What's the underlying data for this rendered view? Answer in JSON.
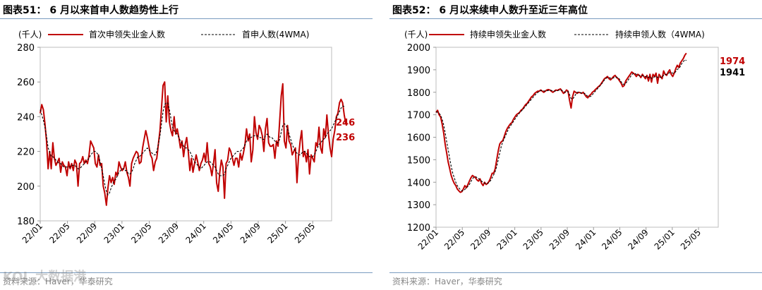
{
  "left": {
    "title": "图表51：  6 月以来首申人数趋势性上行",
    "unit": "(千人)",
    "source": "资料来源：Haver，华泰研究",
    "chart_data": {
      "type": "line",
      "x_tick_labels": [
        "22/01",
        "22/05",
        "22/09",
        "23/01",
        "23/05",
        "23/09",
        "24/01",
        "24/05",
        "24/09",
        "25/01",
        "25/05"
      ],
      "x_start": "2022-01-01",
      "weeks_between_ticks": 17.3,
      "ylim": [
        180,
        280
      ],
      "yticks": [
        180,
        200,
        220,
        240,
        260,
        280
      ],
      "series": [
        {
          "name": "首次申领失业金人数",
          "color": "#c00000",
          "values": [
            242,
            247,
            244,
            236,
            226,
            210,
            220,
            210,
            225,
            216,
            212,
            214,
            216,
            208,
            214,
            212,
            211,
            206,
            214,
            210,
            213,
            209,
            215,
            213,
            200,
            213,
            214,
            217,
            213,
            215,
            213,
            218,
            226,
            224,
            222,
            213,
            211,
            218,
            212,
            213,
            200,
            196,
            189,
            199,
            206,
            202,
            205,
            201,
            208,
            206,
            214,
            211,
            209,
            210,
            214,
            208,
            205,
            200,
            213,
            216,
            218,
            220,
            219,
            213,
            214,
            222,
            227,
            232,
            228,
            223,
            218,
            216,
            209,
            214,
            216,
            224,
            232,
            245,
            258,
            260,
            237,
            252,
            237,
            232,
            229,
            240,
            230,
            233,
            228,
            222,
            226,
            217,
            224,
            228,
            220,
            209,
            216,
            208,
            213,
            218,
            214,
            209,
            213,
            215,
            219,
            214,
            225,
            213,
            211,
            206,
            213,
            221,
            202,
            197,
            208,
            215,
            211,
            193,
            213,
            215,
            222,
            220,
            216,
            212,
            216,
            216,
            211,
            219,
            215,
            219,
            224,
            233,
            226,
            230,
            214,
            221,
            240,
            231,
            227,
            235,
            233,
            229,
            220,
            233,
            239,
            225,
            223,
            223,
            224,
            216,
            226,
            223,
            237,
            252,
            259,
            226,
            222,
            235,
            226,
            224,
            218,
            220,
            222,
            202,
            217,
            226,
            232,
            217,
            220,
            214,
            221,
            207,
            218,
            216,
            214,
            225,
            223,
            234,
            222,
            219,
            233,
            228,
            241,
            230,
            222,
            217,
            227,
            232,
            240,
            242,
            248,
            250,
            248,
            241,
            236
          ]
        },
        {
          "name": "首申人数(4WMA)",
          "color": "#000000",
          "dashed": true,
          "values": [
            244,
            241,
            238,
            234,
            229,
            222,
            220,
            217,
            217,
            216,
            215,
            214,
            213,
            213,
            212,
            211,
            211,
            211,
            211,
            211,
            212,
            212,
            212,
            211,
            210,
            210,
            211,
            212,
            213,
            214,
            215,
            216,
            218,
            219,
            220,
            220,
            219,
            218,
            214,
            210,
            206,
            201,
            197,
            195,
            196,
            199,
            201,
            203,
            204,
            206,
            208,
            209,
            210,
            210,
            209,
            209,
            207,
            207,
            208,
            210,
            213,
            215,
            217,
            217,
            218,
            219,
            220,
            221,
            222,
            221,
            220,
            219,
            218,
            218,
            220,
            224,
            229,
            236,
            243,
            247,
            248,
            248,
            244,
            239,
            234,
            232,
            231,
            230,
            228,
            226,
            225,
            223,
            222,
            222,
            221,
            220,
            218,
            216,
            214,
            213,
            212,
            211,
            210,
            211,
            212,
            213,
            214,
            214,
            214,
            213,
            212,
            211,
            209,
            207,
            206,
            206,
            206,
            207,
            210,
            212,
            214,
            216,
            217,
            218,
            219,
            220,
            220,
            220,
            221,
            222,
            224,
            226,
            227,
            228,
            228,
            229,
            229,
            229,
            229,
            228,
            228,
            227,
            227,
            229,
            230,
            229,
            228,
            228,
            227,
            226,
            225,
            225,
            227,
            231,
            235,
            236,
            235,
            233,
            230,
            227,
            224,
            222,
            220,
            219,
            218,
            218,
            219,
            220,
            220,
            219,
            218,
            217,
            217,
            217,
            218,
            220,
            222,
            224,
            225,
            226,
            227,
            228,
            230,
            231,
            232,
            233,
            235,
            237,
            239,
            241,
            243,
            245,
            246,
            246
          ]
        }
      ],
      "end_labels": [
        {
          "text": "246",
          "color": "#c00000"
        },
        {
          "text": "236",
          "color": "#c00000"
        }
      ]
    }
  },
  "right": {
    "title": "图表52：  6 月以来续申人数升至近三年高位",
    "unit": "(千人)",
    "source": "资料来源：Haver，华泰研究",
    "chart_data": {
      "type": "line",
      "x_tick_labels": [
        "22/01",
        "22/05",
        "22/09",
        "23/01",
        "23/05",
        "23/09",
        "24/01",
        "24/05",
        "24/09",
        "25/01",
        "25/05"
      ],
      "x_start": "2022-01-01",
      "weeks_between_ticks": 17.3,
      "ylim": [
        1200,
        2000
      ],
      "yticks": [
        1200,
        1300,
        1400,
        1500,
        1600,
        1700,
        1800,
        1900,
        2000
      ],
      "series": [
        {
          "name": "持续申领失业金人数",
          "color": "#c00000",
          "values": [
            1710,
            1720,
            1700,
            1690,
            1660,
            1620,
            1570,
            1530,
            1490,
            1460,
            1430,
            1410,
            1395,
            1385,
            1370,
            1362,
            1355,
            1358,
            1370,
            1385,
            1375,
            1390,
            1405,
            1420,
            1430,
            1425,
            1420,
            1410,
            1405,
            1415,
            1395,
            1385,
            1400,
            1390,
            1395,
            1405,
            1420,
            1440,
            1440,
            1460,
            1500,
            1540,
            1570,
            1580,
            1585,
            1605,
            1625,
            1640,
            1650,
            1660,
            1665,
            1680,
            1690,
            1700,
            1705,
            1710,
            1720,
            1725,
            1735,
            1745,
            1750,
            1760,
            1770,
            1780,
            1785,
            1795,
            1800,
            1805,
            1805,
            1810,
            1805,
            1800,
            1805,
            1810,
            1812,
            1810,
            1805,
            1800,
            1805,
            1810,
            1808,
            1812,
            1815,
            1805,
            1795,
            1800,
            1810,
            1805,
            1765,
            1730,
            1780,
            1805,
            1800,
            1795,
            1800,
            1798,
            1795,
            1800,
            1790,
            1780,
            1775,
            1785,
            1790,
            1800,
            1805,
            1812,
            1818,
            1825,
            1830,
            1840,
            1850,
            1860,
            1865,
            1870,
            1860,
            1855,
            1862,
            1870,
            1875,
            1865,
            1860,
            1850,
            1840,
            1825,
            1830,
            1850,
            1860,
            1870,
            1880,
            1890,
            1885,
            1880,
            1870,
            1880,
            1875,
            1865,
            1880,
            1870,
            1860,
            1875,
            1850,
            1880,
            1845,
            1880,
            1870,
            1885,
            1840,
            1880,
            1870,
            1860,
            1895,
            1880,
            1875,
            1890,
            1900,
            1880,
            1870,
            1885,
            1905,
            1920,
            1910,
            1930,
            1940,
            1950,
            1965,
            1974
          ]
        },
        {
          "name": "持续申领人数（4WMA)",
          "color": "#000000",
          "dashed": true,
          "values": [
            1712,
            1712,
            1707,
            1698,
            1680,
            1655,
            1620,
            1580,
            1545,
            1505,
            1470,
            1440,
            1420,
            1400,
            1385,
            1375,
            1367,
            1362,
            1362,
            1368,
            1375,
            1382,
            1390,
            1403,
            1415,
            1423,
            1425,
            1421,
            1416,
            1412,
            1405,
            1399,
            1396,
            1393,
            1395,
            1399,
            1408,
            1420,
            1433,
            1448,
            1470,
            1500,
            1530,
            1560,
            1580,
            1595,
            1610,
            1625,
            1640,
            1650,
            1660,
            1670,
            1680,
            1690,
            1700,
            1708,
            1715,
            1722,
            1730,
            1738,
            1746,
            1754,
            1762,
            1770,
            1778,
            1786,
            1793,
            1799,
            1804,
            1807,
            1808,
            1806,
            1805,
            1806,
            1808,
            1809,
            1808,
            1806,
            1805,
            1806,
            1807,
            1809,
            1810,
            1809,
            1804,
            1800,
            1802,
            1803,
            1790,
            1772,
            1770,
            1778,
            1790,
            1800,
            1800,
            1798,
            1797,
            1796,
            1794,
            1788,
            1782,
            1780,
            1782,
            1789,
            1797,
            1805,
            1813,
            1821,
            1828,
            1836,
            1845,
            1855,
            1862,
            1865,
            1865,
            1863,
            1862,
            1864,
            1868,
            1868,
            1865,
            1857,
            1846,
            1836,
            1836,
            1840,
            1848,
            1858,
            1868,
            1878,
            1884,
            1884,
            1880,
            1876,
            1874,
            1872,
            1874,
            1872,
            1869,
            1871,
            1866,
            1870,
            1862,
            1866,
            1868,
            1872,
            1866,
            1869,
            1866,
            1866,
            1876,
            1880,
            1880,
            1882,
            1888,
            1887,
            1885,
            1884,
            1892,
            1902,
            1905,
            1915,
            1928,
            1936,
            1945,
            1941
          ]
        }
      ],
      "end_labels": [
        {
          "text": "1974",
          "color": "#c00000"
        },
        {
          "text": "1941",
          "color": "#000000"
        }
      ]
    }
  },
  "watermark": "KOL 大数据港"
}
